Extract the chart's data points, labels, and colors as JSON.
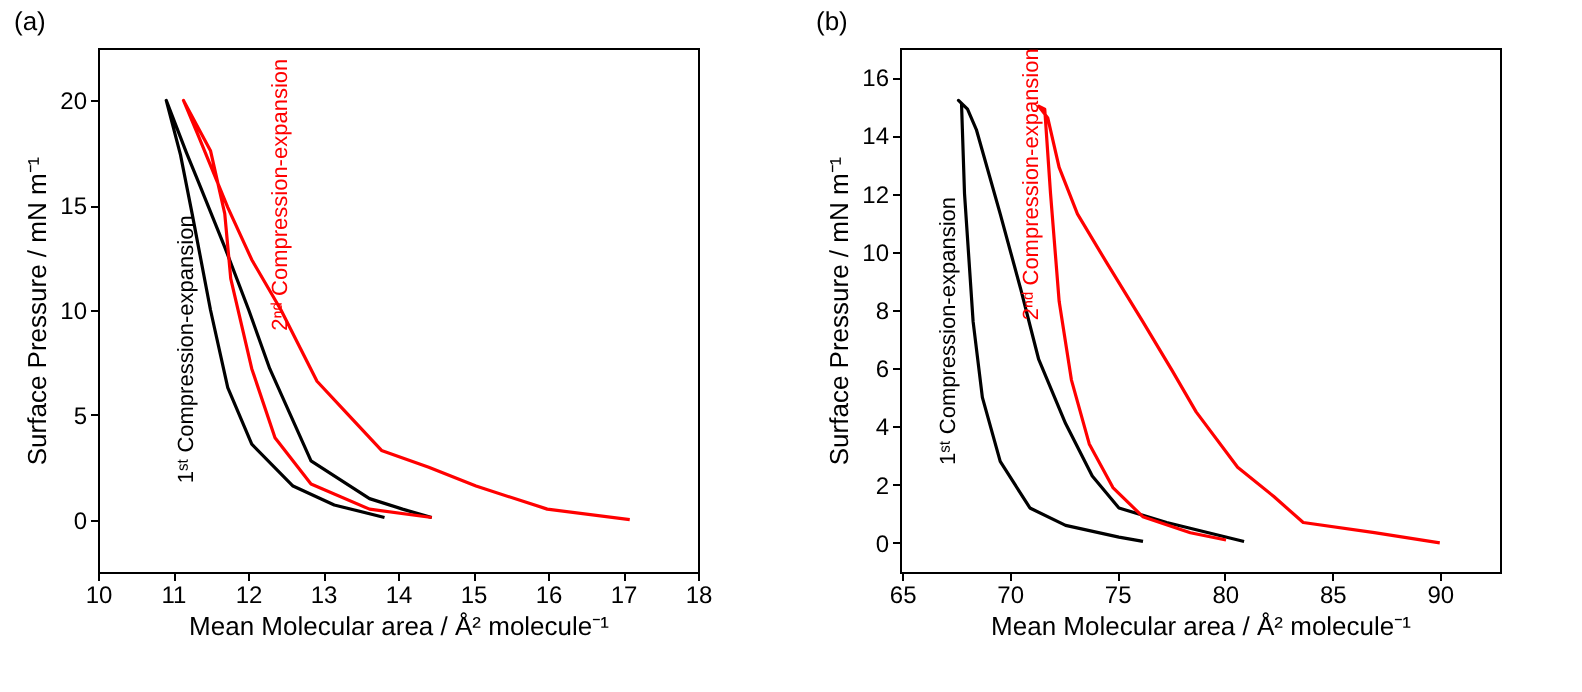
{
  "chart_data": [
    {
      "type": "line",
      "title": "(a)",
      "xlabel": "Mean Molecular area / Å² molecule⁻¹",
      "ylabel": "Surface Pressure / mN m⁻¹",
      "xlim": [
        10,
        18
      ],
      "ylim": [
        -2.5,
        22.5
      ],
      "xticks": [
        10,
        11,
        12,
        13,
        14,
        15,
        16,
        17,
        18
      ],
      "yticks": [
        0,
        5,
        10,
        15,
        20
      ],
      "grid": false,
      "series": [
        {
          "color": "#000000",
          "x": [
            14.45,
            14.06,
            13.62,
            12.84,
            12.29,
            12.01,
            11.69,
            11.34,
            11.18,
            10.91,
            11.1,
            11.26,
            11.5,
            11.73,
            12.05,
            12.6,
            13.15,
            13.82
          ],
          "values": [
            0.1,
            0.5,
            1,
            2.8,
            7.2,
            10,
            13,
            16.1,
            17.5,
            20,
            17.4,
            14.5,
            10,
            6.3,
            3.6,
            1.6,
            0.7,
            0.1
          ]
        },
        {
          "color": "#ff0000",
          "x": [
            17.09,
            15.99,
            15.04,
            14.41,
            13.78,
            13.31,
            12.92,
            12.44,
            12.05,
            11.73,
            11.34,
            11.14,
            11.5,
            11.69,
            11.77,
            12.05,
            12.36,
            12.84,
            13.62,
            14.45
          ],
          "values": [
            0,
            0.5,
            1.6,
            2.5,
            3.3,
            5.1,
            6.6,
            10,
            12.4,
            14.9,
            18.3,
            20,
            17.6,
            14.6,
            11.5,
            7.2,
            3.9,
            1.7,
            0.5,
            0.1
          ]
        }
      ],
      "annotations": [
        "1ˢᵗ Compression-expansion",
        "2ⁿᵈ Compression-expansion"
      ]
    },
    {
      "type": "line",
      "title": "(b)",
      "xlabel": "Mean Molecular area / Å² molecule⁻¹",
      "ylabel": "Surface Pressure / mN m⁻¹",
      "xlim": [
        64.9,
        92.8
      ],
      "ylim": [
        -1,
        17
      ],
      "xticks": [
        65,
        70,
        75,
        80,
        85,
        90
      ],
      "yticks": [
        0,
        2,
        4,
        6,
        8,
        10,
        12,
        14,
        16
      ],
      "grid": false,
      "series": [
        {
          "color": "#000000",
          "x": [
            80.9,
            77.3,
            75.08,
            73.84,
            72.6,
            71.35,
            70.52,
            69.56,
            68.45,
            68.04,
            67.62,
            67.76,
            67.9,
            68.3,
            68.73,
            69.56,
            70.94,
            72.6,
            75.08,
            76.2
          ],
          "values": [
            0.05,
            0.7,
            1.2,
            2.3,
            4.1,
            6.3,
            8.7,
            11.3,
            14.2,
            14.9,
            15.2,
            15.1,
            12,
            7.6,
            5,
            2.8,
            1.2,
            0.6,
            0.2,
            0.05
          ]
        },
        {
          "color": "#ff0000",
          "x": [
            90,
            86.96,
            83.65,
            82.27,
            80.6,
            78.67,
            77.57,
            76.19,
            74.53,
            73.15,
            72.3,
            71.77,
            71.35,
            71.63,
            71.9,
            72.3,
            72.87,
            73.7,
            74.8,
            76.19,
            78.4,
            80.06
          ],
          "values": [
            0,
            0.35,
            0.7,
            1.6,
            2.6,
            4.5,
            5.9,
            7.6,
            9.6,
            11.3,
            12.9,
            14.6,
            15,
            14.9,
            12,
            8.3,
            5.6,
            3.4,
            1.9,
            0.9,
            0.35,
            0.1
          ]
        }
      ],
      "annotations": [
        "1ˢᵗ Compression-expansion",
        "2ⁿᵈ Compression-expansion"
      ]
    }
  ]
}
